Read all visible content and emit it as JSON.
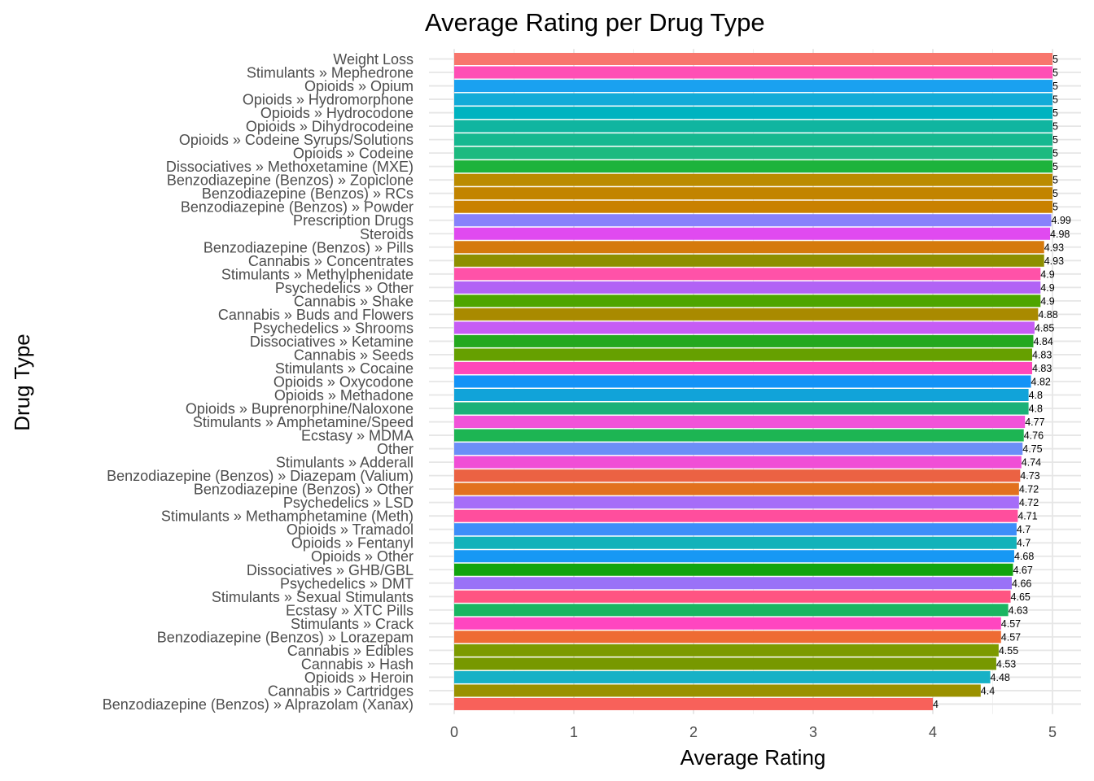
{
  "chart_data": {
    "type": "bar",
    "orientation": "horizontal",
    "title": "Average Rating per Drug Type",
    "xlabel": "Average Rating",
    "ylabel": "Drug Type",
    "xlim": [
      0,
      5
    ],
    "xticks": [
      "0",
      "1",
      "2",
      "3",
      "4",
      "5"
    ],
    "grid": true,
    "legend": "none",
    "bars": [
      {
        "category": "Weight Loss",
        "value": 5,
        "label": "5",
        "color": "#F8766D"
      },
      {
        "category": "Stimulants  » Mephedrone",
        "value": 5,
        "label": "5",
        "color": "#FF4FB5"
      },
      {
        "category": "Opioids  » Opium",
        "value": 5,
        "label": "5",
        "color": "#1AA1F0"
      },
      {
        "category": "Opioids  » Hydromorphone",
        "value": 5,
        "label": "5",
        "color": "#12ABD8"
      },
      {
        "category": "Opioids  » Hydrocodone",
        "value": 5,
        "label": "5",
        "color": "#00B3C0"
      },
      {
        "category": "Opioids  » Dihydrocodeine",
        "value": 5,
        "label": "5",
        "color": "#10B5A0"
      },
      {
        "category": "Opioids  » Codeine Syrups/Solutions",
        "value": 5,
        "label": "5",
        "color": "#16B890"
      },
      {
        "category": "Opioids  » Codeine",
        "value": 5,
        "label": "5",
        "color": "#1DBA80"
      },
      {
        "category": "Dissociatives  » Methoxetamine (MXE)",
        "value": 5,
        "label": "5",
        "color": "#1DB33C"
      },
      {
        "category": "Benzodiazepine (Benzos)  » Zopiclone",
        "value": 5,
        "label": "5",
        "color": "#BB8B00"
      },
      {
        "category": "Benzodiazepine (Benzos)  » RCs",
        "value": 5,
        "label": "5",
        "color": "#C28400"
      },
      {
        "category": "Benzodiazepine (Benzos)  » Powder",
        "value": 5,
        "label": "5",
        "color": "#C98100"
      },
      {
        "category": "Prescription Drugs",
        "value": 4.99,
        "label": "4.99",
        "color": "#8781FB"
      },
      {
        "category": "Steroids",
        "value": 4.98,
        "label": "4.98",
        "color": "#E04AF0"
      },
      {
        "category": "Benzodiazepine (Benzos)  » Pills",
        "value": 4.93,
        "label": "4.93",
        "color": "#D57A0C"
      },
      {
        "category": "Cannabis  » Concentrates",
        "value": 4.93,
        "label": "4.93",
        "color": "#8E8F00"
      },
      {
        "category": "Stimulants  » Methylphenidate",
        "value": 4.9,
        "label": "4.9",
        "color": "#FF52A8"
      },
      {
        "category": "Psychedelics  » Other",
        "value": 4.9,
        "label": "4.9",
        "color": "#B263F5"
      },
      {
        "category": "Cannabis  » Shake",
        "value": 4.9,
        "label": "4.9",
        "color": "#4EA500"
      },
      {
        "category": "Cannabis  » Buds and Flowers",
        "value": 4.88,
        "label": "4.88",
        "color": "#A98A00"
      },
      {
        "category": "Psychedelics  » Shrooms",
        "value": 4.85,
        "label": "4.85",
        "color": "#C65CF5"
      },
      {
        "category": "Dissociatives  » Ketamine",
        "value": 4.84,
        "label": "4.84",
        "color": "#24A81F"
      },
      {
        "category": "Cannabis  » Seeds",
        "value": 4.83,
        "label": "4.83",
        "color": "#66A000"
      },
      {
        "category": "Stimulants  » Cocaine",
        "value": 4.83,
        "label": "4.83",
        "color": "#FF48BA"
      },
      {
        "category": "Opioids  » Oxycodone",
        "value": 4.82,
        "label": "4.82",
        "color": "#1493F7"
      },
      {
        "category": "Opioids  » Methadone",
        "value": 4.8,
        "label": "4.8",
        "color": "#11A3D9"
      },
      {
        "category": "Opioids  » Buprenorphine/Naloxone",
        "value": 4.8,
        "label": "4.8",
        "color": "#1BB178"
      },
      {
        "category": "Stimulants  » Amphetamine/Speed",
        "value": 4.77,
        "label": "4.77",
        "color": "#F153D8"
      },
      {
        "category": "Ecstasy  » MDMA",
        "value": 4.76,
        "label": "4.76",
        "color": "#1DB553"
      },
      {
        "category": "Other",
        "value": 4.75,
        "label": "4.75",
        "color": "#6C8EF7"
      },
      {
        "category": "Stimulants  » Adderall",
        "value": 4.74,
        "label": "4.74",
        "color": "#F04ED6"
      },
      {
        "category": "Benzodiazepine (Benzos)  » Diazepam (Valium)",
        "value": 4.73,
        "label": "4.73",
        "color": "#EB6243"
      },
      {
        "category": "Benzodiazepine (Benzos)  » Other",
        "value": 4.72,
        "label": "4.72",
        "color": "#E2711E"
      },
      {
        "category": "Psychedelics  » LSD",
        "value": 4.72,
        "label": "4.72",
        "color": "#A66DF8"
      },
      {
        "category": "Stimulants  » Methamphetamine (Meth)",
        "value": 4.71,
        "label": "4.71",
        "color": "#FF4E9D"
      },
      {
        "category": "Opioids  » Tramadol",
        "value": 4.7,
        "label": "4.7",
        "color": "#3D8EF9"
      },
      {
        "category": "Opioids  » Fentanyl",
        "value": 4.7,
        "label": "4.7",
        "color": "#13B2BA"
      },
      {
        "category": "Opioids  » Other",
        "value": 4.68,
        "label": "4.68",
        "color": "#1798F4"
      },
      {
        "category": "Dissociatives  » GHB/GBL",
        "value": 4.67,
        "label": "4.67",
        "color": "#12A40E"
      },
      {
        "category": "Psychedelics  » DMT",
        "value": 4.66,
        "label": "4.66",
        "color": "#9A71F7"
      },
      {
        "category": "Stimulants  » Sexual Stimulants",
        "value": 4.65,
        "label": "4.65",
        "color": "#FF5482"
      },
      {
        "category": "Ecstasy  » XTC Pills",
        "value": 4.63,
        "label": "4.63",
        "color": "#1AB562"
      },
      {
        "category": "Stimulants  » Crack",
        "value": 4.57,
        "label": "4.57",
        "color": "#FF46C0"
      },
      {
        "category": "Benzodiazepine (Benzos)  » Lorazepam",
        "value": 4.57,
        "label": "4.57",
        "color": "#EE6B33"
      },
      {
        "category": "Cannabis  » Edibles",
        "value": 4.55,
        "label": "4.55",
        "color": "#7C9A00"
      },
      {
        "category": "Cannabis  » Hash",
        "value": 4.53,
        "label": "4.53",
        "color": "#779800"
      },
      {
        "category": "Opioids  » Heroin",
        "value": 4.48,
        "label": "4.48",
        "color": "#17B1C6"
      },
      {
        "category": "Cannabis  » Cartridges",
        "value": 4.4,
        "label": "4.4",
        "color": "#9A9100"
      },
      {
        "category": "Benzodiazepine (Benzos)  » Alprazolam (Xanax)",
        "value": 4,
        "label": "4",
        "color": "#F8615A"
      }
    ]
  }
}
